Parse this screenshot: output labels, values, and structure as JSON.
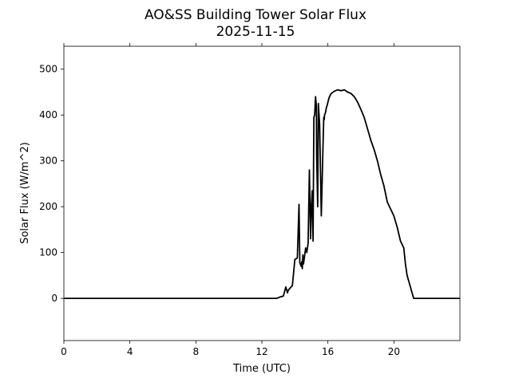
{
  "chart_data": {
    "type": "line",
    "title": "AO&SS Building Tower Solar Flux",
    "subtitle": "2025-11-15",
    "xlabel": "Time (UTC)",
    "ylabel": "Solar Flux (W/m^2)",
    "xlim": [
      0,
      24
    ],
    "ylim": [
      -92,
      550
    ],
    "xticks": [
      0,
      4,
      8,
      12,
      16,
      20
    ],
    "xtick_labels": [
      "0",
      "4",
      "8",
      "12",
      "16",
      "20"
    ],
    "yticks": [
      0,
      100,
      200,
      300,
      400,
      500
    ],
    "ytick_labels": [
      "0",
      "100",
      "200",
      "300",
      "400",
      "500"
    ],
    "grid": false,
    "legend": "none",
    "line_color": "#000000",
    "series": [
      {
        "x": [
          0,
          12.9,
          13.1,
          13.3,
          13.45,
          13.55,
          13.6,
          13.7,
          13.85,
          14.0,
          14.15,
          14.25,
          14.3,
          14.38,
          14.42,
          14.45,
          14.48,
          14.52,
          14.58,
          14.65,
          14.72,
          14.8,
          14.88,
          14.95,
          15.0,
          15.05,
          15.1,
          15.15,
          15.2,
          15.25,
          15.3,
          15.32,
          15.38,
          15.42,
          15.5,
          15.6,
          15.65,
          15.7,
          15.75,
          15.78,
          15.8,
          15.85,
          15.88,
          15.9,
          15.95,
          16.0,
          16.05,
          16.1,
          16.2,
          16.4,
          16.6,
          16.8,
          17.0,
          17.2,
          17.4,
          17.6,
          17.8,
          18.0,
          18.2,
          18.4,
          18.6,
          18.8,
          19.0,
          19.2,
          19.4,
          19.6,
          19.8,
          20.0,
          20.2,
          20.4,
          20.6,
          20.7,
          20.8,
          21.0,
          21.2,
          21.3,
          21.4,
          21.45,
          21.5,
          21.7,
          21.9,
          22.1,
          22.3,
          22.5,
          22.7,
          23.0,
          24.0
        ],
        "y": [
          0,
          0,
          3,
          5,
          25,
          12,
          18,
          22,
          28,
          85,
          88,
          205,
          78,
          70,
          80,
          65,
          95,
          75,
          90,
          110,
          100,
          120,
          280,
          130,
          200,
          235,
          125,
          395,
          400,
          440,
          420,
          310,
          200,
          425,
          380,
          180,
          250,
          330,
          395,
          390,
          400,
          405,
          410,
          415,
          420,
          428,
          435,
          440,
          447,
          452,
          455,
          453,
          455,
          450,
          447,
          440,
          428,
          412,
          395,
          370,
          345,
          325,
          300,
          270,
          245,
          210,
          195,
          180,
          155,
          125,
          110,
          75,
          50,
          25,
          0,
          0,
          0,
          0,
          0,
          0,
          0,
          0,
          0,
          0,
          0,
          0,
          0
        ]
      }
    ]
  }
}
